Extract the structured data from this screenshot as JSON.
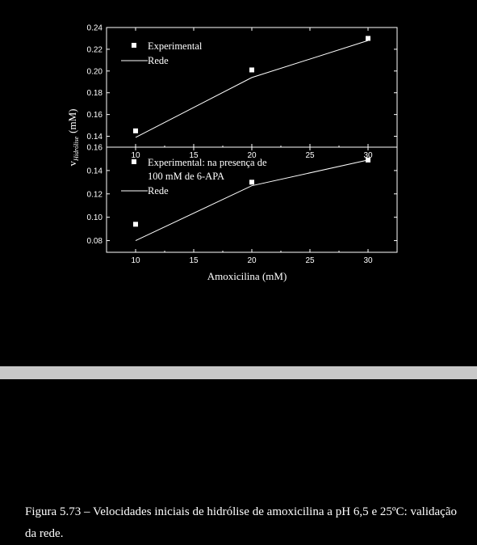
{
  "chart_data": [
    {
      "type": "scatter",
      "x": [
        10,
        20,
        30
      ],
      "series": [
        {
          "name": "Experimental",
          "kind": "markers",
          "values": [
            0.145,
            0.201,
            0.23
          ]
        },
        {
          "name": "Rede",
          "kind": "line",
          "values": [
            0.139,
            0.194,
            0.228
          ]
        }
      ],
      "xlim": [
        7.5,
        32.5
      ],
      "ylim": [
        0.13,
        0.24
      ],
      "xticks": [
        "10",
        "15",
        "20",
        "25",
        "30"
      ],
      "yticks": [
        "0.14",
        "0.16",
        "0.18",
        "0.20",
        "0.22",
        "0.24"
      ],
      "legend_position": "top-left"
    },
    {
      "type": "scatter",
      "x": [
        10,
        20,
        30
      ],
      "series": [
        {
          "name": "Experimental: na presença de 100 mM de 6-APA",
          "name_lines": [
            "Experimental: na presença de",
            "100 mM de 6-APA"
          ],
          "kind": "markers",
          "values": [
            0.094,
            0.13,
            0.149
          ]
        },
        {
          "name": "Rede",
          "kind": "line",
          "values": [
            0.08,
            0.127,
            0.149
          ]
        }
      ],
      "xlim": [
        7.5,
        32.5
      ],
      "ylim": [
        0.07,
        0.16
      ],
      "xticks": [
        "10",
        "15",
        "20",
        "25",
        "30"
      ],
      "yticks": [
        "0.08",
        "0.10",
        "0.12",
        "0.14",
        "0.16"
      ],
      "legend_position": "top-left"
    }
  ],
  "axes": {
    "ylabel_main": "v",
    "ylabel_subscript": "Hidrólise",
    "ylabel_unit": "(mM)",
    "xlabel": "Amoxicilina (mM)"
  },
  "colors": {
    "background": "#000000",
    "foreground": "#ffffff",
    "divider": "#c8c8c8"
  },
  "caption": "Figura 5.73 – Velocidades iniciais de hidrólise de amoxicilina a pH 6,5 e 25ºC: validação da rede."
}
